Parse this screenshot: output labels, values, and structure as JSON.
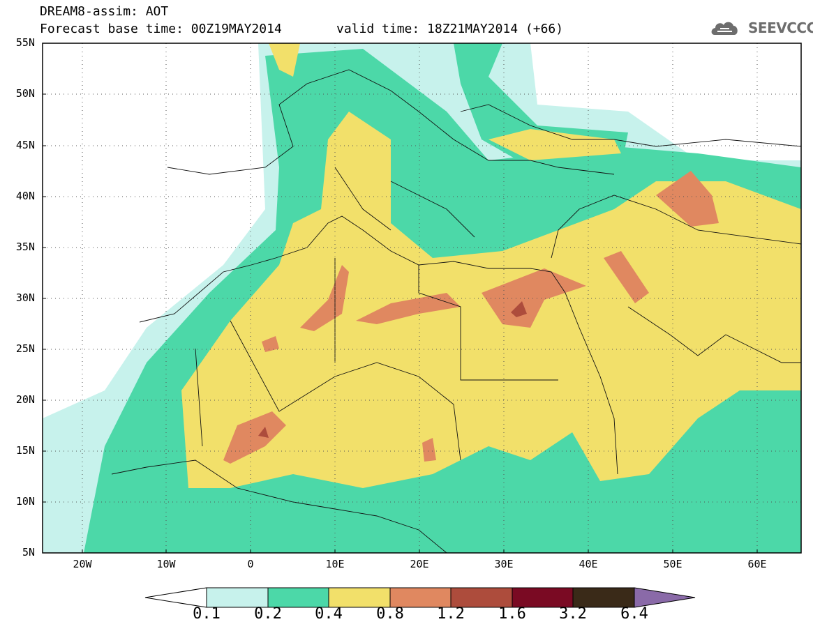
{
  "header": {
    "title": "DREAM8-assim: AOT",
    "base_time": "Forecast base time: 00Z19MAY2014",
    "valid_time": "valid time: 18Z21MAY2014 (+66)",
    "logo_text": "SEEVCCC"
  },
  "map": {
    "lat_labels": [
      "55N",
      "50N",
      "45N",
      "40N",
      "35N",
      "30N",
      "25N",
      "20N",
      "15N",
      "10N",
      "5N"
    ],
    "lon_labels": [
      "20W",
      "10W",
      "0",
      "10E",
      "20E",
      "30E",
      "40E",
      "50E",
      "60E"
    ],
    "extent": {
      "lon": [
        -25,
        65
      ],
      "lat": [
        5,
        55
      ]
    }
  },
  "colorbar": {
    "labels": [
      "0.1",
      "0.2",
      "0.4",
      "0.8",
      "1.2",
      "1.6",
      "3.2",
      "6.4"
    ],
    "colors": [
      "#ffffff",
      "#c7f2ec",
      "#4cd8a8",
      "#f2e06a",
      "#e08860",
      "#ad4c3c",
      "#7a0a23",
      "#3a2a18",
      "#8a6aa8"
    ]
  }
}
